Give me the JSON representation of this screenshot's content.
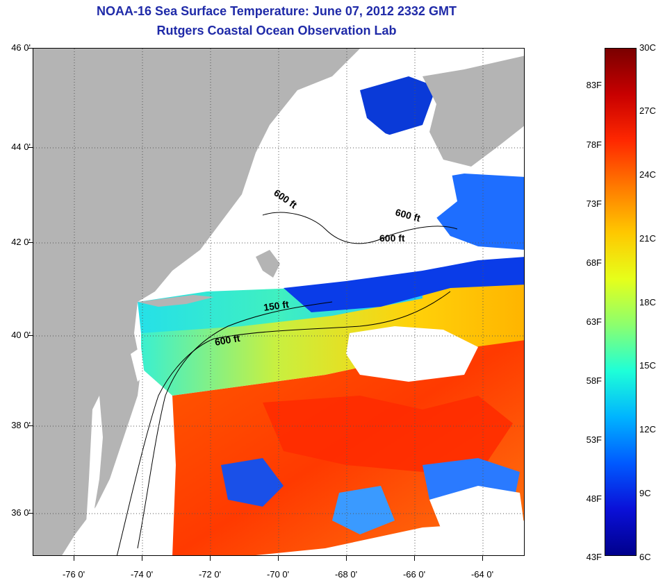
{
  "title": {
    "line1": "NOAA-16 Sea Surface Temperature:  June 07, 2012 2332 GMT",
    "line2": "Rutgers Coastal Ocean Observation Lab"
  },
  "map": {
    "latitude_labels": [
      "46 0'",
      "44 0'",
      "42 0'",
      "40 0'",
      "38 0'",
      "36 0'"
    ],
    "longitude_labels": [
      "-76 0'",
      "-74 0'",
      "-72 0'",
      "-70 0'",
      "-68 0'",
      "-66 0'",
      "-64 0'"
    ],
    "contour_labels": [
      "600 ft",
      "600 ft",
      "600 ft",
      "150 ft",
      "600 ft"
    ],
    "colors": {
      "land": "#b4b4b4",
      "no_data": "#ffffff",
      "grid": "#555555"
    }
  },
  "colorbar": {
    "celsius_labels": [
      "30C",
      "27C",
      "24C",
      "21C",
      "18C",
      "15C",
      "12C",
      "9C",
      "6C"
    ],
    "fahrenheit_labels": [
      "83F",
      "78F",
      "73F",
      "68F",
      "63F",
      "58F",
      "53F",
      "48F",
      "43F"
    ],
    "gradient_stops": [
      "#7a0000",
      "#c80000",
      "#ff2800",
      "#ff7a00",
      "#ffc800",
      "#e6ff1a",
      "#8cff6e",
      "#1effd8",
      "#00b4ff",
      "#005aff",
      "#0a10d8",
      "#00008c"
    ]
  }
}
